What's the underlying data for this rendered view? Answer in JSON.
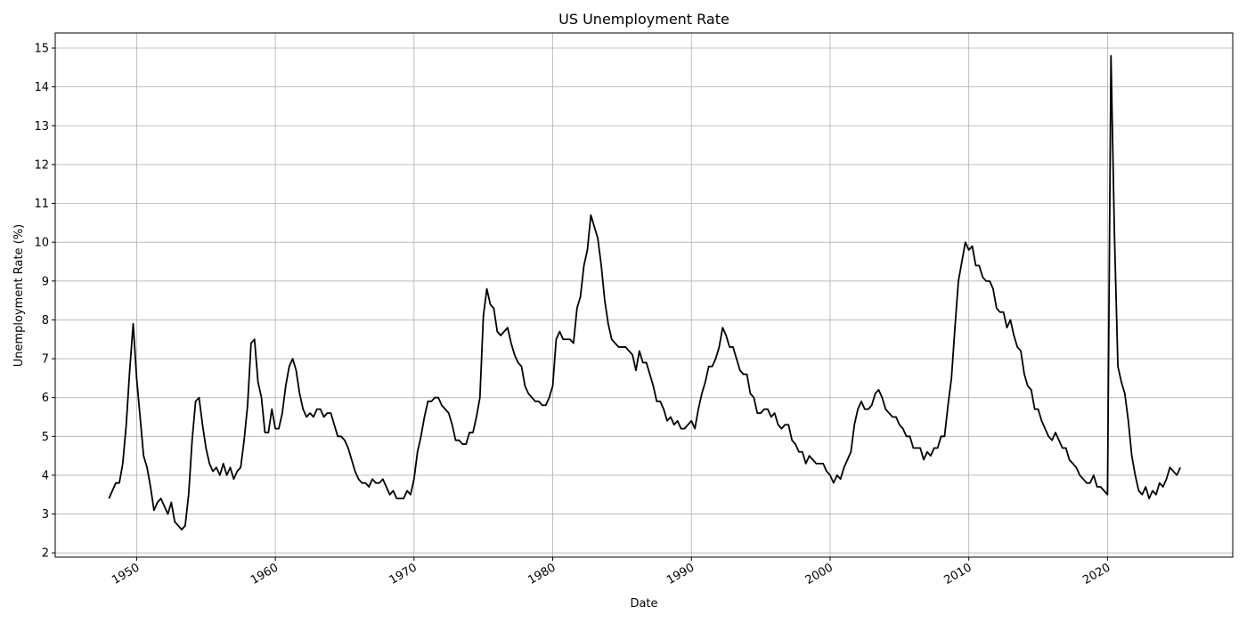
{
  "chart_data": {
    "type": "line",
    "title": "US Unemployment Rate",
    "xlabel": "Date",
    "ylabel": "Unemployment Rate (%)",
    "grid": true,
    "xlim": [
      1944.13,
      2029.03
    ],
    "ylim": [
      1.89,
      15.39
    ],
    "xticks": [
      1950,
      1960,
      1970,
      1980,
      1990,
      2000,
      2010,
      2020
    ],
    "yticks": [
      2,
      3,
      4,
      5,
      6,
      7,
      8,
      9,
      10,
      11,
      12,
      13,
      14,
      15
    ],
    "x": [
      1948,
      1948.25,
      1948.5,
      1948.75,
      1949,
      1949.25,
      1949.5,
      1949.75,
      1950,
      1950.25,
      1950.5,
      1950.75,
      1951,
      1951.25,
      1951.5,
      1951.75,
      1952,
      1952.25,
      1952.5,
      1952.75,
      1953,
      1953.25,
      1953.5,
      1953.75,
      1954,
      1954.25,
      1954.5,
      1954.75,
      1955,
      1955.25,
      1955.5,
      1955.75,
      1956,
      1956.25,
      1956.5,
      1956.75,
      1957,
      1957.25,
      1957.5,
      1957.75,
      1958,
      1958.25,
      1958.5,
      1958.75,
      1959,
      1959.25,
      1959.5,
      1959.75,
      1960,
      1960.25,
      1960.5,
      1960.75,
      1961,
      1961.25,
      1961.5,
      1961.75,
      1962,
      1962.25,
      1962.5,
      1962.75,
      1963,
      1963.25,
      1963.5,
      1963.75,
      1964,
      1964.25,
      1964.5,
      1964.75,
      1965,
      1965.25,
      1965.5,
      1965.75,
      1966,
      1966.25,
      1966.5,
      1966.75,
      1967,
      1967.25,
      1967.5,
      1967.75,
      1968,
      1968.25,
      1968.5,
      1968.75,
      1969,
      1969.25,
      1969.5,
      1969.75,
      1970,
      1970.25,
      1970.5,
      1970.75,
      1971,
      1971.25,
      1971.5,
      1971.75,
      1972,
      1972.25,
      1972.5,
      1972.75,
      1973,
      1973.25,
      1973.5,
      1973.75,
      1974,
      1974.25,
      1974.5,
      1974.75,
      1975,
      1975.25,
      1975.5,
      1975.75,
      1976,
      1976.25,
      1976.5,
      1976.75,
      1977,
      1977.25,
      1977.5,
      1977.75,
      1978,
      1978.25,
      1978.5,
      1978.75,
      1979,
      1979.25,
      1979.5,
      1979.75,
      1980,
      1980.25,
      1980.5,
      1980.75,
      1981,
      1981.25,
      1981.5,
      1981.75,
      1982,
      1982.25,
      1982.5,
      1982.75,
      1983,
      1983.25,
      1983.5,
      1983.75,
      1984,
      1984.25,
      1984.5,
      1984.75,
      1985,
      1985.25,
      1985.5,
      1985.75,
      1986,
      1986.25,
      1986.5,
      1986.75,
      1987,
      1987.25,
      1987.5,
      1987.75,
      1988,
      1988.25,
      1988.5,
      1988.75,
      1989,
      1989.25,
      1989.5,
      1989.75,
      1990,
      1990.25,
      1990.5,
      1990.75,
      1991,
      1991.25,
      1991.5,
      1991.75,
      1992,
      1992.25,
      1992.5,
      1992.75,
      1993,
      1993.25,
      1993.5,
      1993.75,
      1994,
      1994.25,
      1994.5,
      1994.75,
      1995,
      1995.25,
      1995.5,
      1995.75,
      1996,
      1996.25,
      1996.5,
      1996.75,
      1997,
      1997.25,
      1997.5,
      1997.75,
      1998,
      1998.25,
      1998.5,
      1998.75,
      1999,
      1999.25,
      1999.5,
      1999.75,
      2000,
      2000.25,
      2000.5,
      2000.75,
      2001,
      2001.25,
      2001.5,
      2001.75,
      2002,
      2002.25,
      2002.5,
      2002.75,
      2003,
      2003.25,
      2003.5,
      2003.75,
      2004,
      2004.25,
      2004.5,
      2004.75,
      2005,
      2005.25,
      2005.5,
      2005.75,
      2006,
      2006.25,
      2006.5,
      2006.75,
      2007,
      2007.25,
      2007.5,
      2007.75,
      2008,
      2008.25,
      2008.5,
      2008.75,
      2009,
      2009.25,
      2009.5,
      2009.75,
      2010,
      2010.25,
      2010.5,
      2010.75,
      2011,
      2011.25,
      2011.5,
      2011.75,
      2012,
      2012.25,
      2012.5,
      2012.75,
      2013,
      2013.25,
      2013.5,
      2013.75,
      2014,
      2014.25,
      2014.5,
      2014.75,
      2015,
      2015.25,
      2015.5,
      2015.75,
      2016,
      2016.25,
      2016.5,
      2016.75,
      2017,
      2017.25,
      2017.5,
      2017.75,
      2018,
      2018.25,
      2018.5,
      2018.75,
      2019,
      2019.25,
      2019.5,
      2019.75,
      2020,
      2020.25,
      2020.5,
      2020.75,
      2021,
      2021.25,
      2021.5,
      2021.75,
      2022,
      2022.25,
      2022.5,
      2022.75,
      2023,
      2023.25,
      2023.5,
      2023.75,
      2024,
      2024.25,
      2024.5,
      2024.75,
      2025,
      2025.25
    ],
    "series": [
      {
        "color": "#000000",
        "values": [
          3.4,
          3.6,
          3.8,
          3.8,
          4.3,
          5.3,
          6.7,
          7.9,
          6.5,
          5.5,
          4.5,
          4.2,
          3.7,
          3.1,
          3.3,
          3.4,
          3.2,
          3.0,
          3.3,
          2.8,
          2.7,
          2.6,
          2.7,
          3.5,
          4.9,
          5.9,
          6.0,
          5.3,
          4.7,
          4.3,
          4.1,
          4.2,
          4.0,
          4.3,
          4.0,
          4.2,
          3.9,
          4.1,
          4.2,
          4.9,
          5.8,
          7.4,
          7.5,
          6.4,
          6.0,
          5.1,
          5.1,
          5.7,
          5.2,
          5.2,
          5.6,
          6.3,
          6.8,
          7.0,
          6.7,
          6.1,
          5.7,
          5.5,
          5.6,
          5.5,
          5.7,
          5.7,
          5.5,
          5.6,
          5.6,
          5.3,
          5.0,
          5.0,
          4.9,
          4.7,
          4.4,
          4.1,
          3.9,
          3.8,
          3.8,
          3.7,
          3.9,
          3.8,
          3.8,
          3.9,
          3.7,
          3.5,
          3.6,
          3.4,
          3.4,
          3.4,
          3.6,
          3.5,
          3.9,
          4.6,
          5.0,
          5.5,
          5.9,
          5.9,
          6.0,
          6.0,
          5.8,
          5.7,
          5.6,
          5.3,
          4.9,
          4.9,
          4.8,
          4.8,
          5.1,
          5.1,
          5.5,
          6.0,
          8.1,
          8.8,
          8.4,
          8.3,
          7.7,
          7.6,
          7.7,
          7.8,
          7.4,
          7.1,
          6.9,
          6.8,
          6.3,
          6.1,
          6.0,
          5.9,
          5.9,
          5.8,
          5.8,
          6.0,
          6.3,
          7.5,
          7.7,
          7.5,
          7.5,
          7.5,
          7.4,
          8.3,
          8.6,
          9.4,
          9.8,
          10.7,
          10.4,
          10.1,
          9.4,
          8.5,
          7.9,
          7.5,
          7.4,
          7.3,
          7.3,
          7.3,
          7.2,
          7.1,
          6.7,
          7.2,
          6.9,
          6.9,
          6.6,
          6.3,
          5.9,
          5.9,
          5.7,
          5.4,
          5.5,
          5.3,
          5.4,
          5.2,
          5.2,
          5.3,
          5.4,
          5.2,
          5.7,
          6.1,
          6.4,
          6.8,
          6.8,
          7.0,
          7.3,
          7.8,
          7.6,
          7.3,
          7.3,
          7.0,
          6.7,
          6.6,
          6.6,
          6.1,
          6.0,
          5.6,
          5.6,
          5.7,
          5.7,
          5.5,
          5.6,
          5.3,
          5.2,
          5.3,
          5.3,
          4.9,
          4.8,
          4.6,
          4.6,
          4.3,
          4.5,
          4.4,
          4.3,
          4.3,
          4.3,
          4.1,
          4.0,
          3.8,
          4.0,
          3.9,
          4.2,
          4.4,
          4.6,
          5.3,
          5.7,
          5.9,
          5.7,
          5.7,
          5.8,
          6.1,
          6.2,
          6.0,
          5.7,
          5.6,
          5.5,
          5.5,
          5.3,
          5.2,
          5.0,
          5.0,
          4.7,
          4.7,
          4.7,
          4.4,
          4.6,
          4.5,
          4.7,
          4.7,
          5.0,
          5.0,
          5.8,
          6.5,
          7.8,
          9.0,
          9.5,
          10.0,
          9.8,
          9.9,
          9.4,
          9.4,
          9.1,
          9.0,
          9.0,
          8.8,
          8.3,
          8.2,
          8.2,
          7.8,
          8.0,
          7.6,
          7.3,
          7.2,
          6.6,
          6.3,
          6.2,
          5.7,
          5.7,
          5.4,
          5.2,
          5.0,
          4.9,
          5.1,
          4.9,
          4.7,
          4.7,
          4.4,
          4.3,
          4.2,
          4.0,
          3.9,
          3.8,
          3.8,
          4.0,
          3.7,
          3.7,
          3.6,
          3.5,
          14.8,
          10.2,
          6.8,
          6.4,
          6.1,
          5.4,
          4.5,
          4.0,
          3.6,
          3.5,
          3.7,
          3.4,
          3.6,
          3.5,
          3.8,
          3.7,
          3.9,
          4.2,
          4.1,
          4.0,
          4.2
        ]
      }
    ]
  }
}
